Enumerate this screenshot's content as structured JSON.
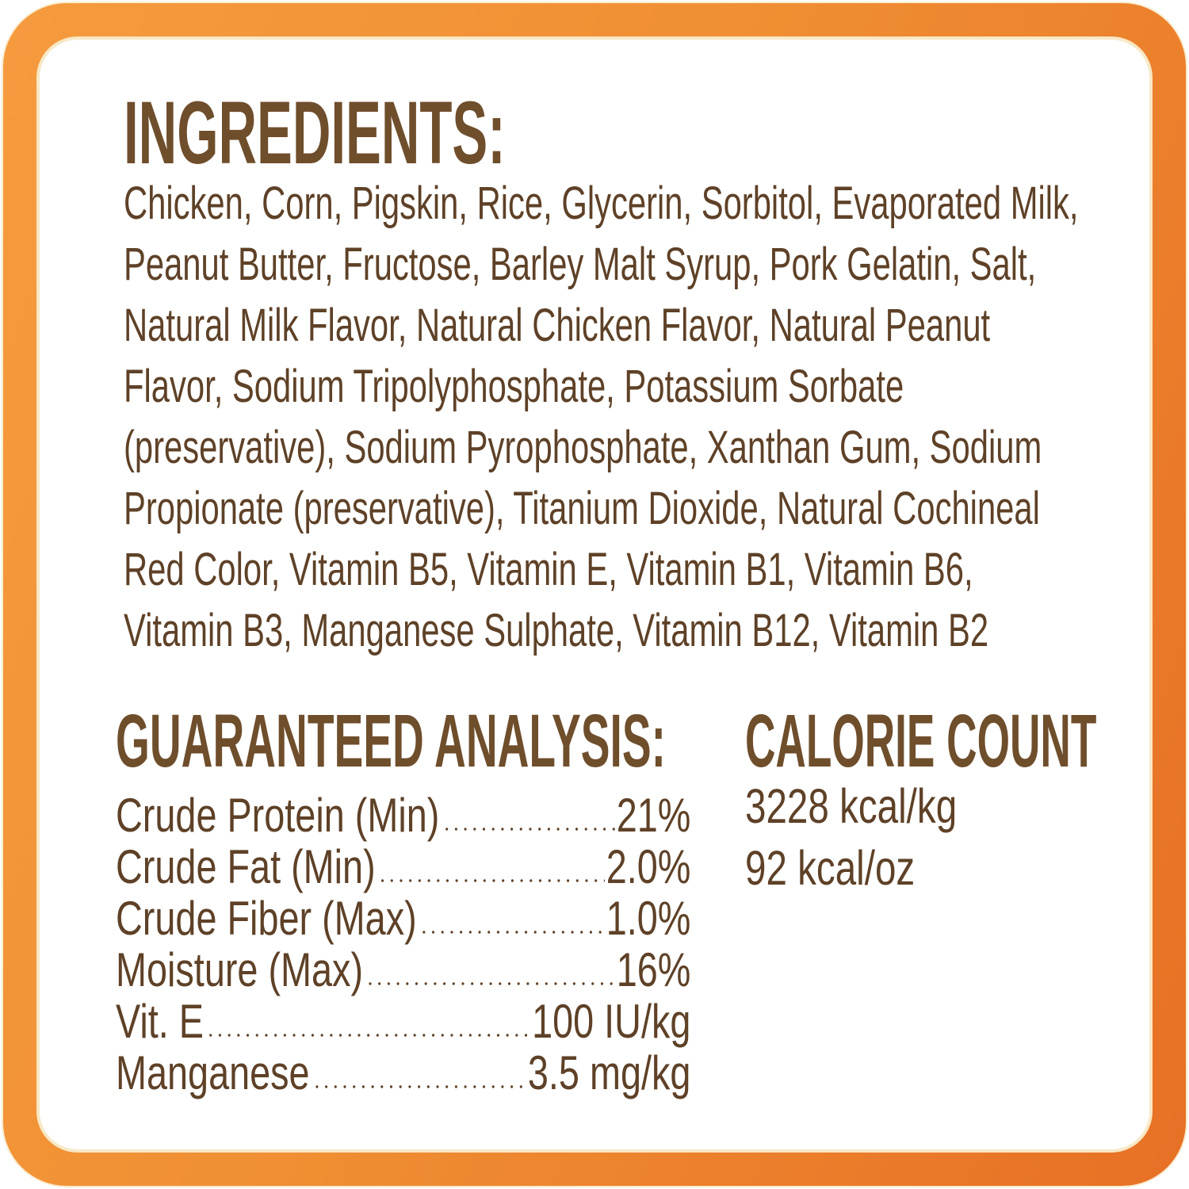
{
  "ingredients": {
    "title": "INGREDIENTS:",
    "lines": [
      "Chicken, Corn, Pigskin, Rice, Glycerin, Sorbitol, Evaporated Milk,",
      "Peanut Butter, Fructose, Barley Malt Syrup, Pork Gelatin, Salt,",
      "Natural Milk Flavor, Natural Chicken Flavor, Natural Peanut",
      "Flavor, Sodium Tripolyphosphate, Potassium Sorbate",
      "(preservative), Sodium Pyrophosphate, Xanthan Gum, Sodium",
      "Propionate (preservative), Titanium Dioxide, Natural Cochineal",
      "Red Color, Vitamin B5, Vitamin E, Vitamin B1, Vitamin B6,",
      "Vitamin B3, Manganese Sulphate, Vitamin B12, Vitamin B2"
    ]
  },
  "guaranteed_analysis": {
    "title": "GUARANTEED ANALYSIS:",
    "rows": [
      {
        "label": "Crude Protein (Min)",
        "value": "21%"
      },
      {
        "label": "Crude Fat (Min)",
        "value": "2.0%"
      },
      {
        "label": "Crude Fiber (Max)",
        "value": "1.0%"
      },
      {
        "label": "Moisture (Max)",
        "value": "16%"
      },
      {
        "label": "Vit. E",
        "value": "100 IU/kg"
      },
      {
        "label": "Manganese",
        "value": "3.5 mg/kg"
      }
    ]
  },
  "calorie_count": {
    "title": "CALORIE COUNT",
    "values": [
      "3228 kcal/kg",
      "92 kcal/oz"
    ]
  },
  "colors": {
    "border_orange_light": "#F59B3E",
    "border_orange_dark": "#E77025",
    "inner_stroke_cream": "#F8E8C5",
    "heading_brown": "#6F4E2C",
    "body_brown": "#5E4127"
  }
}
